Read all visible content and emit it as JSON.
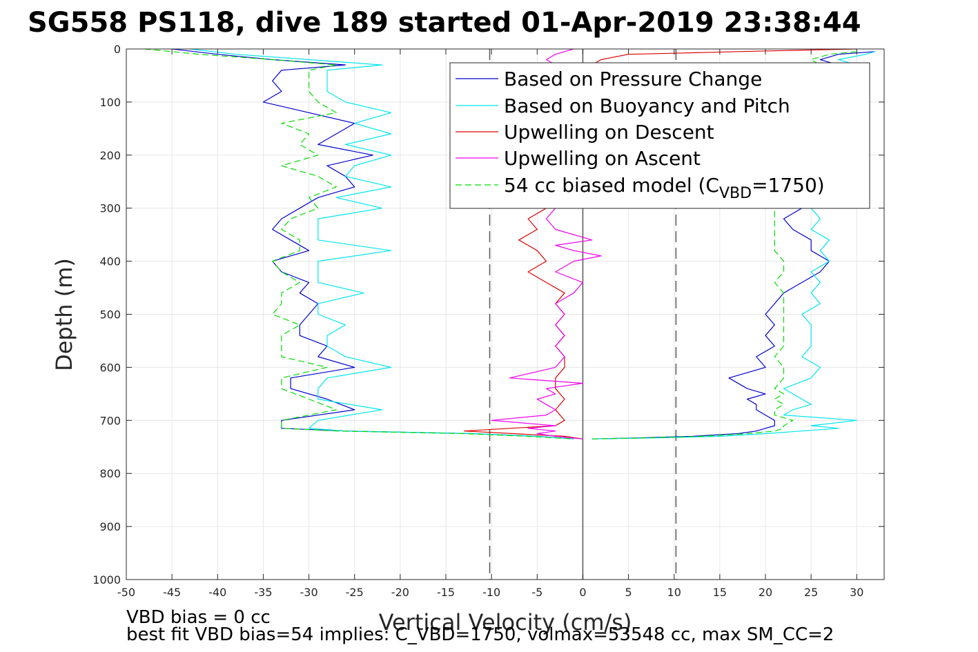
{
  "chart_data": {
    "type": "line",
    "title": "SG558 PS118, dive 189 started 01-Apr-2019 23:38:44",
    "xlabel": "Vertical Velocity (cm/s)",
    "ylabel": "Depth (m)",
    "xlim": [
      -50,
      33
    ],
    "ylim": [
      0,
      1000
    ],
    "y_reversed": true,
    "grid": true,
    "x_ticks": [
      "-50",
      "-45",
      "-40",
      "-35",
      "-30",
      "-25",
      "-20",
      "-15",
      "-10",
      "-5",
      "0",
      "5",
      "10",
      "15",
      "20",
      "25",
      "30"
    ],
    "y_ticks": [
      "0",
      "100",
      "200",
      "300",
      "400",
      "500",
      "600",
      "700",
      "800",
      "900",
      "1000"
    ],
    "reference_lines": [
      {
        "x": -10.2,
        "style": "dashed"
      },
      {
        "x": 0,
        "style": "solid"
      },
      {
        "x": 10.2,
        "style": "dashed"
      }
    ],
    "legend": {
      "placement": "top-right",
      "entries": [
        {
          "label": "Based on Pressure Change",
          "color": "#0000cc",
          "style": "solid"
        },
        {
          "label": "Based on Buoyancy and Pitch",
          "color": "#00e5ee",
          "style": "solid"
        },
        {
          "label": "Upwelling on Descent",
          "color": "#dd0000",
          "style": "solid"
        },
        {
          "label": "Upwelling on Ascent",
          "color": "#ee00ee",
          "style": "solid"
        },
        {
          "label_main": "54 cc biased model (C",
          "label_sub": "VBD",
          "label_tail": "=1750)",
          "color": "#00dd00",
          "style": "dashed"
        }
      ]
    },
    "series": [
      {
        "key": "pressure_descent",
        "color": "#0000cc",
        "dash": false,
        "depth": [
          0,
          10,
          20,
          30,
          40,
          60,
          80,
          100,
          120,
          140,
          160,
          180,
          200,
          220,
          240,
          260,
          280,
          300,
          320,
          340,
          360,
          380,
          400,
          420,
          440,
          460,
          480,
          500,
          520,
          540,
          560,
          580,
          600,
          620,
          640,
          660,
          680,
          700,
          715,
          720,
          725,
          730,
          735
        ],
        "velocity": [
          -45,
          -40,
          -34,
          -26,
          -33,
          -34,
          -33,
          -35,
          -30,
          -25,
          -27,
          -29,
          -23,
          -28,
          -26,
          -25,
          -29,
          -31,
          -33,
          -34,
          -32,
          -30,
          -34,
          -33,
          -30,
          -31,
          -29,
          -30,
          -31,
          -31,
          -28,
          -29,
          -25,
          -32,
          -32,
          -28,
          -25,
          -33,
          -33,
          -26,
          -12,
          -5,
          -1
        ]
      },
      {
        "key": "buoyancy_descent",
        "color": "#00e5ee",
        "dash": false,
        "depth": [
          0,
          10,
          20,
          30,
          40,
          60,
          80,
          100,
          120,
          140,
          160,
          180,
          200,
          220,
          240,
          260,
          280,
          300,
          320,
          340,
          360,
          380,
          400,
          420,
          440,
          460,
          480,
          500,
          520,
          540,
          560,
          580,
          600,
          620,
          640,
          660,
          680,
          700,
          715,
          720,
          725,
          730,
          735
        ],
        "velocity": [
          -43,
          -38,
          -30,
          -22,
          -28,
          -28,
          -28,
          -26,
          -21,
          -25,
          -21,
          -26,
          -21,
          -25,
          -26,
          -21,
          -27,
          -22,
          -29,
          -29,
          -29,
          -21,
          -29,
          -29,
          -29,
          -24,
          -29,
          -29,
          -26,
          -28,
          -28,
          -26,
          -21,
          -28,
          -29,
          -29,
          -22,
          -29,
          -30,
          -26,
          -12,
          -5,
          -1
        ]
      },
      {
        "key": "model_descent",
        "color": "#00dd00",
        "dash": true,
        "depth": [
          0,
          10,
          20,
          30,
          40,
          60,
          80,
          100,
          120,
          140,
          160,
          180,
          200,
          220,
          240,
          260,
          280,
          300,
          320,
          340,
          360,
          380,
          400,
          420,
          440,
          460,
          480,
          500,
          520,
          540,
          560,
          580,
          600,
          620,
          640,
          660,
          680,
          700,
          715,
          720,
          725,
          730,
          735
        ],
        "velocity": [
          -48,
          -42,
          -34,
          -27,
          -30,
          -30,
          -30,
          -29,
          -27,
          -33,
          -30,
          -31,
          -29,
          -33,
          -29,
          -27,
          -30,
          -29,
          -32,
          -33,
          -31,
          -31,
          -34,
          -33,
          -31,
          -33,
          -33,
          -34,
          -31,
          -33,
          -33,
          -33,
          -28,
          -33,
          -33,
          -30,
          -27,
          -33,
          -33,
          -27,
          -13,
          -6,
          -1
        ]
      },
      {
        "key": "pressure_ascent",
        "color": "#0000cc",
        "dash": false,
        "depth": [
          735,
          733,
          730,
          725,
          720,
          715,
          710,
          700,
          690,
          680,
          670,
          660,
          650,
          640,
          620,
          600,
          580,
          560,
          540,
          520,
          500,
          480,
          460,
          440,
          420,
          400,
          380,
          360,
          340,
          320,
          300,
          280,
          260,
          240,
          220,
          200,
          180,
          160,
          140,
          120,
          100,
          80,
          60,
          40,
          30,
          20,
          10,
          5
        ],
        "velocity": [
          1,
          6,
          12,
          17,
          19,
          20,
          21,
          21,
          20,
          19,
          19,
          18,
          20,
          18,
          16,
          20,
          19,
          21,
          20,
          21,
          20,
          21,
          22,
          24,
          26,
          27,
          25,
          25,
          23,
          22,
          24,
          26,
          25,
          24,
          25,
          24,
          25,
          23,
          22,
          24,
          26,
          24,
          22,
          23,
          28,
          26,
          28,
          32
        ]
      },
      {
        "key": "buoyancy_ascent",
        "color": "#00e5ee",
        "dash": false,
        "depth": [
          735,
          733,
          730,
          725,
          720,
          715,
          710,
          700,
          690,
          680,
          670,
          660,
          650,
          640,
          620,
          600,
          580,
          560,
          540,
          520,
          500,
          480,
          460,
          440,
          420,
          400,
          380,
          360,
          340,
          320,
          300,
          280,
          260,
          240,
          220,
          200,
          180,
          160,
          140,
          120,
          100,
          80,
          60,
          40,
          30,
          20,
          10,
          5
        ],
        "velocity": [
          1,
          8,
          15,
          20,
          24,
          28,
          25,
          30,
          22,
          23,
          25,
          24,
          23,
          22,
          25,
          26,
          24,
          25,
          25,
          25,
          24,
          26,
          25,
          26,
          25,
          27,
          26,
          27,
          25,
          26,
          25,
          27,
          26,
          25,
          27,
          26,
          25,
          27,
          26,
          25,
          27,
          26,
          25,
          26,
          30,
          28,
          31,
          32
        ]
      },
      {
        "key": "model_ascent",
        "color": "#00dd00",
        "dash": true,
        "depth": [
          735,
          733,
          730,
          725,
          720,
          715,
          710,
          700,
          690,
          680,
          670,
          660,
          650,
          640,
          620,
          600,
          580,
          560,
          540,
          520,
          500,
          480,
          460,
          440,
          420,
          400,
          380,
          360,
          340,
          320,
          300,
          280,
          260,
          240,
          220,
          200,
          180,
          160,
          140,
          120,
          100,
          80,
          60,
          40,
          30,
          20,
          10,
          5
        ],
        "velocity": [
          1,
          7,
          13,
          18,
          21,
          22,
          22,
          23,
          21,
          21,
          22,
          21,
          22,
          21,
          22,
          22,
          21,
          22,
          22,
          22,
          22,
          22,
          22,
          21,
          22,
          22,
          21,
          21,
          21,
          21,
          21,
          22,
          22,
          22,
          22,
          22,
          22,
          22,
          21,
          22,
          22,
          22,
          21,
          22,
          26,
          25,
          27,
          30
        ]
      },
      {
        "key": "upwelling_descent",
        "color": "#dd0000",
        "dash": false,
        "depth": [
          0,
          3,
          5,
          8,
          10,
          20,
          30,
          40,
          60,
          80,
          100,
          120,
          140,
          160,
          180,
          200,
          220,
          240,
          260,
          280,
          300,
          320,
          340,
          360,
          380,
          400,
          420,
          440,
          460,
          480,
          500,
          520,
          540,
          560,
          580,
          600,
          620,
          640,
          660,
          680,
          700,
          710,
          720,
          730,
          735
        ],
        "velocity": [
          30,
          22,
          17,
          10,
          5,
          2,
          1,
          0,
          -1,
          -2,
          -1,
          -3,
          -2,
          -1,
          -3,
          -2,
          -1,
          -2,
          -3,
          -2,
          -4,
          -6,
          -5,
          -7,
          -5,
          -4,
          -6,
          -4,
          -2,
          -3,
          -2,
          -3,
          -2,
          -3,
          -2,
          -2,
          -3,
          -3,
          -2,
          -3,
          -2,
          -3,
          -13,
          -2,
          0
        ]
      },
      {
        "key": "upwelling_ascent",
        "color": "#ee00ee",
        "dash": false,
        "depth": [
          735,
          730,
          725,
          720,
          715,
          710,
          700,
          690,
          680,
          670,
          660,
          650,
          640,
          630,
          620,
          600,
          580,
          560,
          540,
          520,
          500,
          480,
          460,
          440,
          420,
          400,
          390,
          380,
          370,
          360,
          340,
          320,
          300,
          280,
          260,
          240,
          220,
          200,
          180,
          160,
          140,
          120,
          100,
          80,
          60,
          40,
          20,
          10,
          5,
          0
        ],
        "velocity": [
          0,
          -3,
          -5,
          -3,
          -6,
          -3,
          -10,
          -4,
          -3,
          -4,
          -5,
          -3,
          -4,
          0,
          -8,
          -3,
          -2,
          -3,
          -2,
          -3,
          -2,
          -3,
          -1,
          0,
          -3,
          -1,
          2,
          -1,
          -3,
          1,
          -3,
          -4,
          -3,
          -2,
          -1,
          -2,
          -3,
          -1,
          -2,
          -3,
          -1,
          -2,
          -3,
          -2,
          -3,
          -2,
          -4,
          -3,
          -2,
          -1
        ]
      }
    ],
    "footer": {
      "line1": "VBD bias = 0 cc",
      "line2": "best fit VBD bias=54 implies: C_VBD=1750, volmax=53548 cc, max SM_CC=2"
    }
  }
}
